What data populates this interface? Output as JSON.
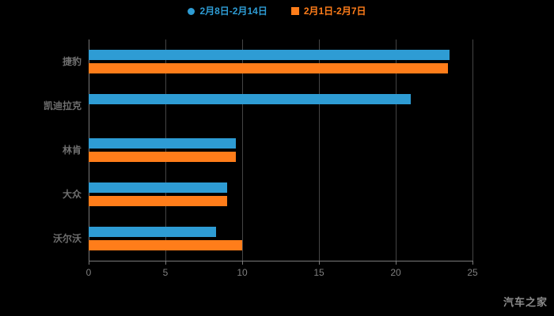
{
  "watermark": "汽车之家",
  "chart_data": {
    "type": "bar",
    "orientation": "horizontal",
    "title": "",
    "categories": [
      "捷豹",
      "凯迪拉克",
      "林肯",
      "大众",
      "沃尔沃"
    ],
    "series": [
      {
        "name": "2月8日-2月14日",
        "color": "#2e9cd4",
        "marker": "circle",
        "values": [
          23.5,
          21,
          9.6,
          9,
          8.3
        ]
      },
      {
        "name": "2月1日-2月7日",
        "color": "#ff7d1a",
        "marker": "square",
        "values": [
          23.4,
          0,
          9.6,
          9,
          10
        ]
      }
    ],
    "xlim": [
      0,
      25
    ],
    "xticks": [
      0,
      5,
      10,
      15,
      20,
      25
    ],
    "grid": true,
    "legend_position": "top",
    "background": "#000000"
  }
}
